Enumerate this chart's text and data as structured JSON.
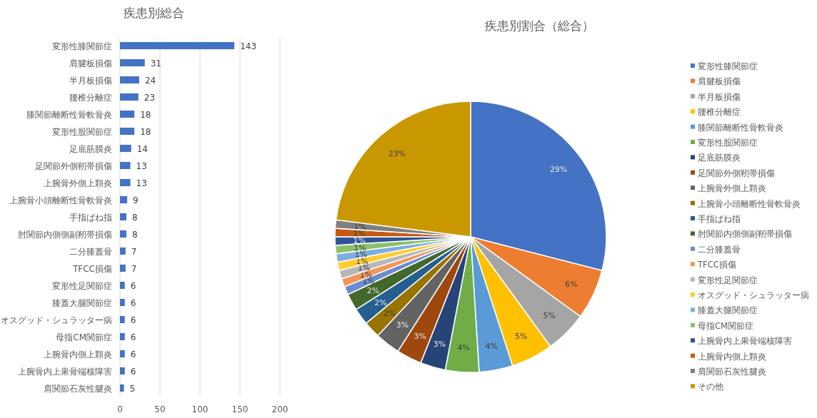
{
  "chart_data": [
    {
      "type": "bar",
      "title": "疾患別総合",
      "orientation": "horizontal",
      "categories": [
        "変形性膝関節症",
        "肩腱板損傷",
        "半月板損傷",
        "腰椎分離症",
        "膝関節離断性骨軟骨炎",
        "変形性股関節症",
        "足底筋膜炎",
        "足関節外側靭帯損傷",
        "上腕骨外側上顆炎",
        "上腕骨小頭離断性骨軟骨炎",
        "手指ばね指",
        "肘関節内側側副靭帯損傷",
        "二分膝蓋骨",
        "TFCC損傷",
        "変形性足関節症",
        "膝蓋大腿関節症",
        "オスグッド・シュラッター病",
        "母指CM関節症",
        "上腕骨内側上顆炎",
        "上腕骨内上果骨端核障害",
        "肩関節石灰性腱炎"
      ],
      "values": [
        143,
        31,
        24,
        23,
        18,
        18,
        14,
        13,
        13,
        9,
        8,
        8,
        7,
        7,
        6,
        6,
        6,
        6,
        6,
        6,
        5
      ],
      "color": "#4472c4",
      "xlim": [
        0,
        200
      ],
      "xticks": [
        0,
        50,
        100,
        150,
        200
      ],
      "grid": "x",
      "data_labels": true
    },
    {
      "type": "pie",
      "title": "疾患別割合（総合）",
      "categories": [
        "変形性膝関節症",
        "肩腱板損傷",
        "半月板損傷",
        "腰椎分離症",
        "膝関節離断性骨軟骨炎",
        "変形性股関節症",
        "足底筋膜炎",
        "足関節外側靭帯損傷",
        "上腕骨外側上顆炎",
        "上腕骨小頭離断性骨軟骨炎",
        "手指ばね指",
        "肘関節内側側副靭帯損傷",
        "二分膝蓋骨",
        "TFCC損傷",
        "変形性足関節症",
        "オスグッド・シュラッター病",
        "膝蓋大腿関節症",
        "母指CM関節症",
        "上腕骨内上果骨端核障害",
        "上腕骨内側上顆炎",
        "肩関節石灰性腱炎",
        "その他"
      ],
      "values": [
        29,
        6,
        5,
        5,
        4,
        4,
        3,
        3,
        3,
        2,
        2,
        2,
        1,
        1,
        1,
        1,
        1,
        1,
        1,
        1,
        1,
        23
      ],
      "colors": [
        "#4472c4",
        "#ed7d31",
        "#a5a5a5",
        "#ffc000",
        "#5b9bd5",
        "#70ad47",
        "#264478",
        "#9e480e",
        "#636363",
        "#997300",
        "#255e91",
        "#43682b",
        "#698ed0",
        "#f1975a",
        "#b7b7b7",
        "#ffcd33",
        "#7cafdd",
        "#8cc168",
        "#2f5597",
        "#c55a11",
        "#7f7f7f",
        "#c99800"
      ],
      "value_labels": [
        "29%",
        "6%",
        "5%",
        "5%",
        "4%",
        "4%",
        "3%",
        "3%",
        "3%",
        "2%",
        "2%",
        "2%",
        "1%",
        "1%",
        "1%",
        "1%",
        "1%",
        "1%",
        "1%",
        "1%",
        "1%",
        "23%"
      ],
      "legend": "right"
    }
  ]
}
